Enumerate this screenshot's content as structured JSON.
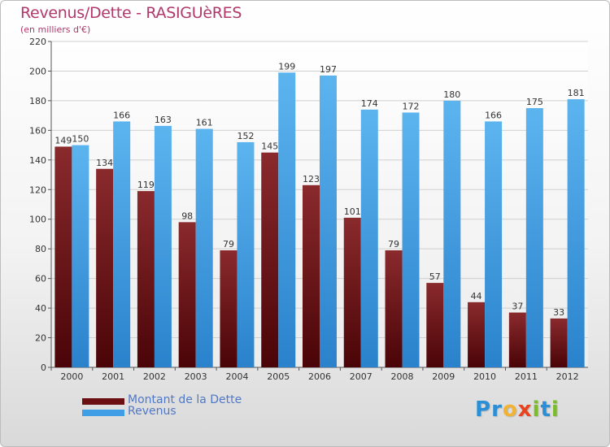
{
  "header": {
    "title": "Revenus/Dette - RASIGUèRES",
    "subtitle": "(en milliers d'€)"
  },
  "legend": {
    "items": [
      {
        "label": "Montant de la Dette",
        "color": "#6b0f12"
      },
      {
        "label": "Revenus",
        "color": "#3f9ee6"
      }
    ]
  },
  "logo": {
    "text": "Proxiti",
    "letters": [
      "P",
      "r",
      "o",
      "x",
      "i",
      "t",
      "i"
    ],
    "colors": [
      "#2a8fd6",
      "#2a8fd6",
      "#f2b233",
      "#e8431e",
      "#7dbb2e",
      "#2a8fd6",
      "#7dbb2e"
    ]
  },
  "chart_data": {
    "type": "bar",
    "title": "Revenus/Dette - RASIGUèRES",
    "subtitle": "(en milliers d'€)",
    "categories": [
      "2000",
      "2001",
      "2002",
      "2003",
      "2004",
      "2005",
      "2006",
      "2007",
      "2008",
      "2009",
      "2010",
      "2011",
      "2012"
    ],
    "series": [
      {
        "name": "Montant de la Dette",
        "color": "#6b0f12",
        "values": [
          149,
          134,
          119,
          98,
          79,
          145,
          123,
          101,
          79,
          57,
          44,
          37,
          33
        ]
      },
      {
        "name": "Revenus",
        "color": "#3f9ee6",
        "values": [
          150,
          166,
          163,
          161,
          152,
          199,
          197,
          174,
          172,
          180,
          166,
          175,
          181
        ]
      }
    ],
    "ylim": [
      0,
      220
    ],
    "yticks": [
      0,
      20,
      40,
      60,
      80,
      100,
      120,
      140,
      160,
      180,
      200,
      220
    ],
    "grid": true,
    "legend_position": "bottom-left"
  }
}
